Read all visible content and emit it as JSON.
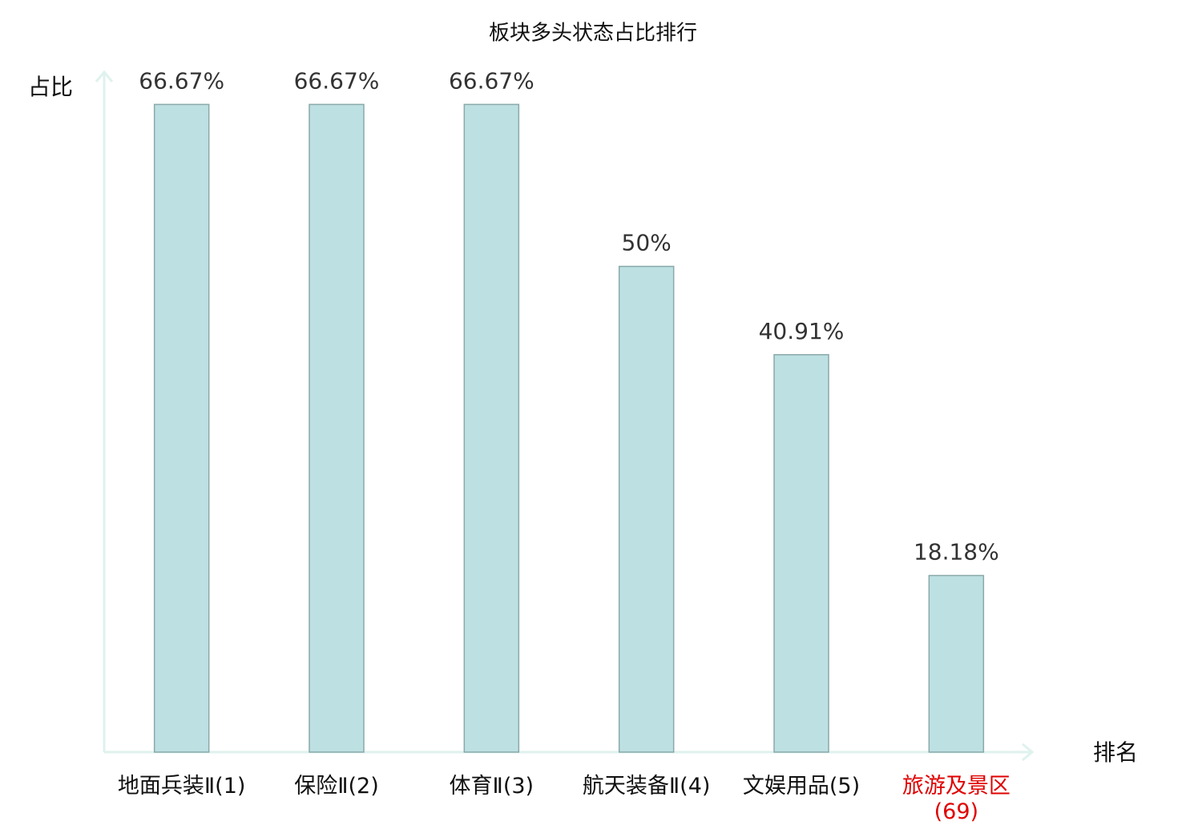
{
  "chart_data": {
    "type": "bar",
    "title": "板块多头状态占比排行",
    "y_label": "占比",
    "x_label": "排名",
    "categories": [
      "地面兵装Ⅱ(1)",
      "保险Ⅱ(2)",
      "体育Ⅱ(3)",
      "航天装备Ⅱ(4)",
      "文娱用品(5)",
      "旅游及景区(69)"
    ],
    "values": [
      66.67,
      66.67,
      66.67,
      50,
      40.91,
      18.18
    ],
    "value_labels": [
      "66.67%",
      "66.67%",
      "66.67%",
      "50%",
      "40.91%",
      "18.18%"
    ],
    "color": "#bde0e3",
    "category_colors": [
      "#111111",
      "#111111",
      "#111111",
      "#111111",
      "#111111",
      "#e00000"
    ],
    "ylim": [
      0,
      70
    ]
  }
}
